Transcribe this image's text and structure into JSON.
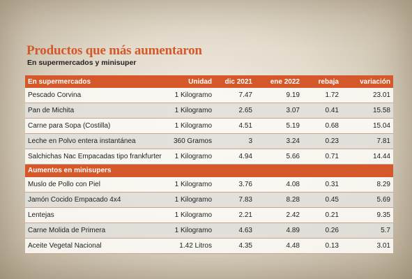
{
  "title": "Productos que más aumentaron",
  "subtitle": "En supermercados y minisuper",
  "colors": {
    "accent": "#d4582a"
  },
  "columns": [
    "En supermercados",
    "Unidad",
    "dic 2021",
    "ene 2022",
    "rebaja",
    "variación"
  ],
  "sections": [
    {
      "heading": "En supermercados",
      "rows": [
        [
          "Pescado Corvina",
          "1 Kilogramo",
          "7.47",
          "9.19",
          "1.72",
          "23.01"
        ],
        [
          "Pan de Michita",
          "1 Kilogramo",
          "2.65",
          "3.07",
          "0.41",
          "15.58"
        ],
        [
          "Carne para Sopa (Costilla)",
          "1 Kilogramo",
          "4.51",
          "5.19",
          "0.68",
          "15.04"
        ],
        [
          "Leche en Polvo entera instantánea",
          "360 Gramos",
          "3",
          "3.24",
          "0.23",
          "7.81"
        ],
        [
          "Salchichas Nac Empacadas tipo frankfurter",
          "1 Kilogramo",
          "4.94",
          "5.66",
          "0.71",
          "14.44"
        ]
      ]
    },
    {
      "heading": "Aumentos en minisupers",
      "rows": [
        [
          "Muslo de Pollo con Piel",
          "1 Kilogramo",
          "3.76",
          "4.08",
          "0.31",
          "8.29"
        ],
        [
          "Jamón Cocido Empacado 4x4",
          "1 Kilogramo",
          "7.83",
          "8.28",
          "0.45",
          "5.69"
        ],
        [
          "Lentejas",
          "1 Kilogramo",
          "2.21",
          "2.42",
          "0.21",
          "9.35"
        ],
        [
          "Carne Molida de Primera",
          "1 Kilogramo",
          "4.63",
          "4.89",
          "0.26",
          "5.7"
        ],
        [
          "Aceite Vegetal Nacional",
          "1.42 Litros",
          "4.35",
          "4.48",
          "0.13",
          "3.01"
        ]
      ]
    }
  ]
}
